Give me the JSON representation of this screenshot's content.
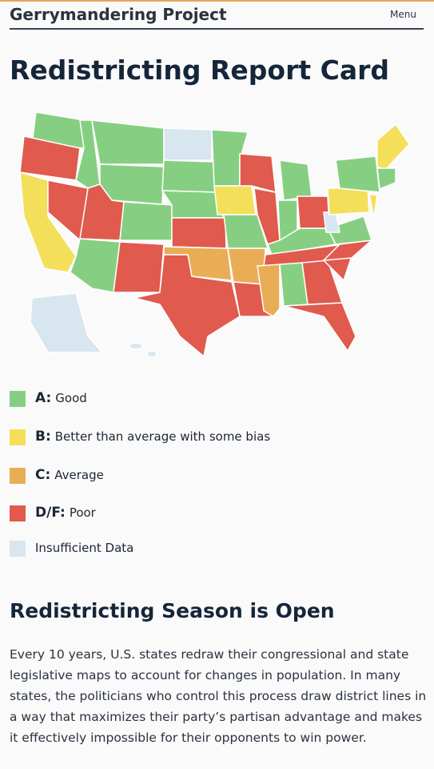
{
  "header": {
    "brand": "Gerrymandering Project",
    "menu": "Menu"
  },
  "title": "Redistricting Report Card",
  "legend": [
    {
      "grade": "A:",
      "label": "Good"
    },
    {
      "grade": "B:",
      "label": "Better than average with some bias"
    },
    {
      "grade": "C:",
      "label": "Average"
    },
    {
      "grade": "D/F:",
      "label": "Poor"
    },
    {
      "label": "Insufficient Data"
    }
  ],
  "section": {
    "heading": "Redistricting Season is Open",
    "paragraph": "Every 10 years, U.S. states redraw their congressional and state legislative maps to account for changes in population. In many states, the politicians who control this process draw district lines in a way that maximizes their party’s partisan advantage and makes it effectively impossible for their opponents to win power."
  }
}
